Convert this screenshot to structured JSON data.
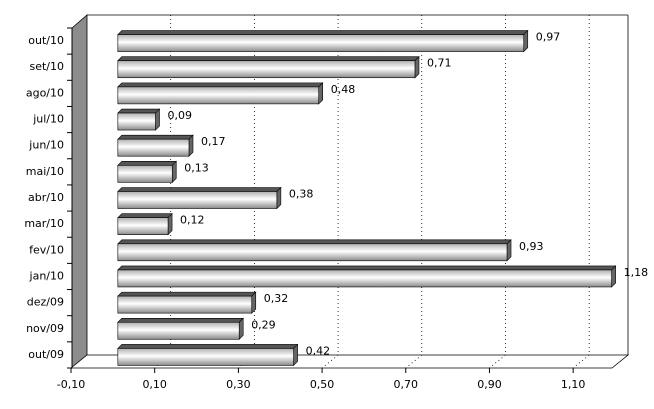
{
  "chart_data": {
    "type": "bar",
    "orientation": "horizontal",
    "categories": [
      "out/10",
      "set/10",
      "ago/10",
      "jul/10",
      "jun/10",
      "mai/10",
      "abr/10",
      "mar/10",
      "fev/10",
      "jan/10",
      "dez/09",
      "nov/09",
      "out/09"
    ],
    "values": [
      0.97,
      0.71,
      0.48,
      0.09,
      0.17,
      0.13,
      0.38,
      0.12,
      0.93,
      1.18,
      0.32,
      0.29,
      0.42
    ],
    "value_labels": [
      "0,97",
      "0,71",
      "0,48",
      "0,09",
      "0,17",
      "0,13",
      "0,38",
      "0,12",
      "0,93",
      "1,18",
      "0,32",
      "0,29",
      "0,42"
    ],
    "xlim": [
      -0.1,
      1.2
    ],
    "xticks": [
      {
        "value": -0.1,
        "label": "-0,10"
      },
      {
        "value": 0.1,
        "label": "0,10"
      },
      {
        "value": 0.3,
        "label": "0,30"
      },
      {
        "value": 0.5,
        "label": "0,50"
      },
      {
        "value": 0.7,
        "label": "0,70"
      },
      {
        "value": 0.9,
        "label": "0,90"
      },
      {
        "value": 1.1,
        "label": "1,10"
      }
    ],
    "grid": true,
    "color": "#a0a0a0"
  }
}
